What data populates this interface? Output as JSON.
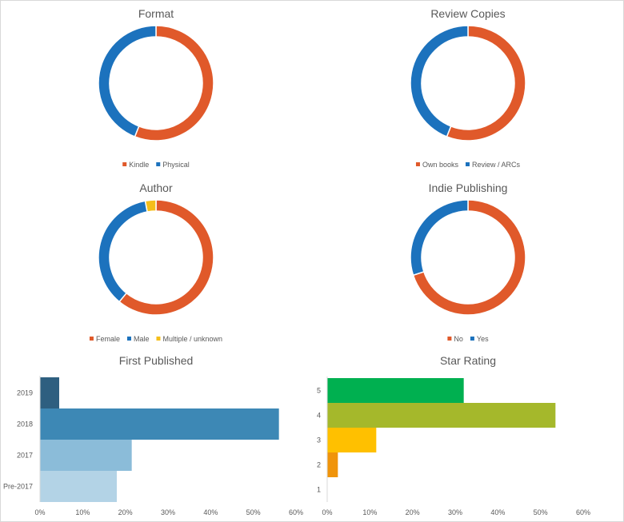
{
  "chart_data": [
    {
      "id": "format",
      "type": "pie",
      "title": "Format",
      "donut": true,
      "slices": [
        {
          "label": "Kindle",
          "value": 56,
          "color": "#e0592a"
        },
        {
          "label": "Physical",
          "value": 44,
          "color": "#1c72bd"
        }
      ],
      "legend": "bottom"
    },
    {
      "id": "review",
      "type": "pie",
      "title": "Review Copies",
      "donut": true,
      "slices": [
        {
          "label": "Own books",
          "value": 56,
          "color": "#e0592a"
        },
        {
          "label": "Review / ARCs",
          "value": 44,
          "color": "#1c72bd"
        }
      ],
      "legend": "bottom"
    },
    {
      "id": "author",
      "type": "pie",
      "title": "Author",
      "donut": true,
      "slices": [
        {
          "label": "Female",
          "value": 61,
          "color": "#e0592a"
        },
        {
          "label": "Male",
          "value": 36,
          "color": "#1c72bd"
        },
        {
          "label": "Multiple / unknown",
          "value": 3,
          "color": "#f5bf1a"
        }
      ],
      "legend": "bottom"
    },
    {
      "id": "indie",
      "type": "pie",
      "title": "Indie Publishing",
      "donut": true,
      "slices": [
        {
          "label": "No",
          "value": 70,
          "color": "#e0592a"
        },
        {
          "label": "Yes",
          "value": 30,
          "color": "#1c72bd"
        }
      ],
      "legend": "bottom"
    },
    {
      "id": "published",
      "type": "bar",
      "orientation": "horizontal",
      "title": "First Published",
      "categories": [
        "2019",
        "2018",
        "2017",
        "Pre-2017"
      ],
      "values": [
        4.5,
        56,
        21.5,
        18
      ],
      "colors": [
        "#2e5f80",
        "#3d88b5",
        "#8bbcd9",
        "#b3d3e6"
      ],
      "xlim": [
        0,
        60
      ],
      "xticks": [
        "0%",
        "10%",
        "20%",
        "30%",
        "40%",
        "50%",
        "60%"
      ],
      "grid": false
    },
    {
      "id": "stars",
      "type": "bar",
      "orientation": "horizontal",
      "title": "Star Rating",
      "categories": [
        "5",
        "4",
        "3",
        "2",
        "1"
      ],
      "values": [
        32,
        53.5,
        11.5,
        2.5,
        0
      ],
      "colors": [
        "#00b050",
        "#a5b82b",
        "#ffc000",
        "#f0940a",
        "#cccccc"
      ],
      "xlim": [
        0,
        60
      ],
      "xticks": [
        "0%",
        "10%",
        "20%",
        "30%",
        "40%",
        "50%",
        "60%"
      ],
      "grid": false
    }
  ]
}
